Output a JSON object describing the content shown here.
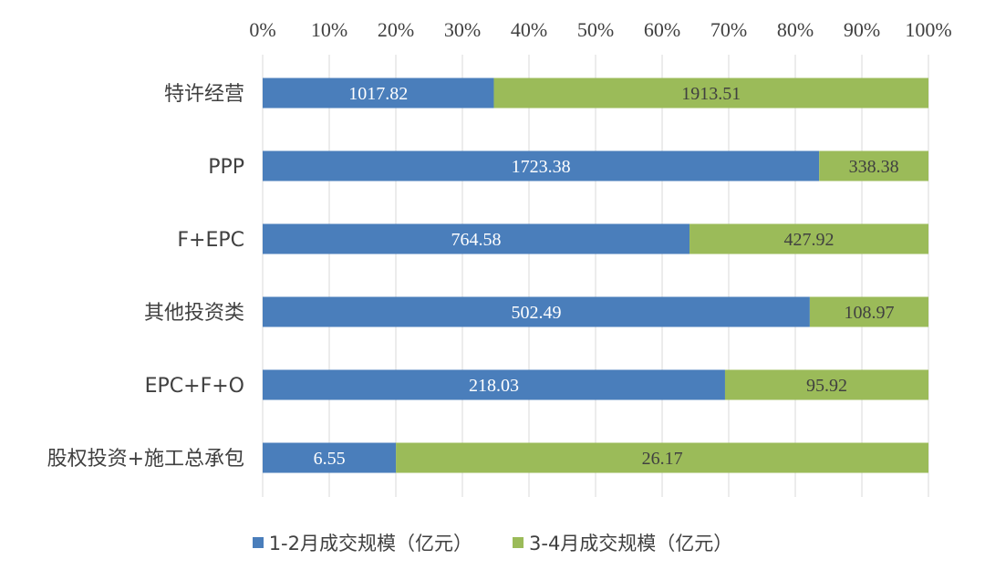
{
  "chart_data": {
    "type": "bar",
    "orientation": "horizontal",
    "stacked": "percent",
    "categories": [
      "特许经营",
      "PPP",
      "F+EPC",
      "其他投资类",
      "EPC+F+O",
      "股权投资+施工总承包"
    ],
    "series": [
      {
        "name": "1-2月成交规模（亿元）",
        "color": "#4a7ebb",
        "values": [
          1017.82,
          1723.38,
          764.58,
          502.49,
          218.03,
          6.55
        ]
      },
      {
        "name": "3-4月成交规模（亿元）",
        "color": "#9bbb59",
        "values": [
          1913.51,
          338.38,
          427.92,
          108.97,
          95.92,
          26.17
        ]
      }
    ],
    "data_labels": {
      "series_0": [
        "1017.82",
        "1723.38",
        "764.58",
        "502.49",
        "218.03",
        "6.55"
      ],
      "series_1": [
        "1913.51",
        "338.38",
        "427.92",
        "108.97",
        "95.92",
        "26.17"
      ]
    },
    "x_ticks": [
      "0%",
      "10%",
      "20%",
      "30%",
      "40%",
      "50%",
      "60%",
      "70%",
      "80%",
      "90%",
      "100%"
    ],
    "xlim": [
      0,
      100
    ],
    "x_axis_position": "top",
    "grid": "vertical",
    "legend_position": "bottom"
  }
}
